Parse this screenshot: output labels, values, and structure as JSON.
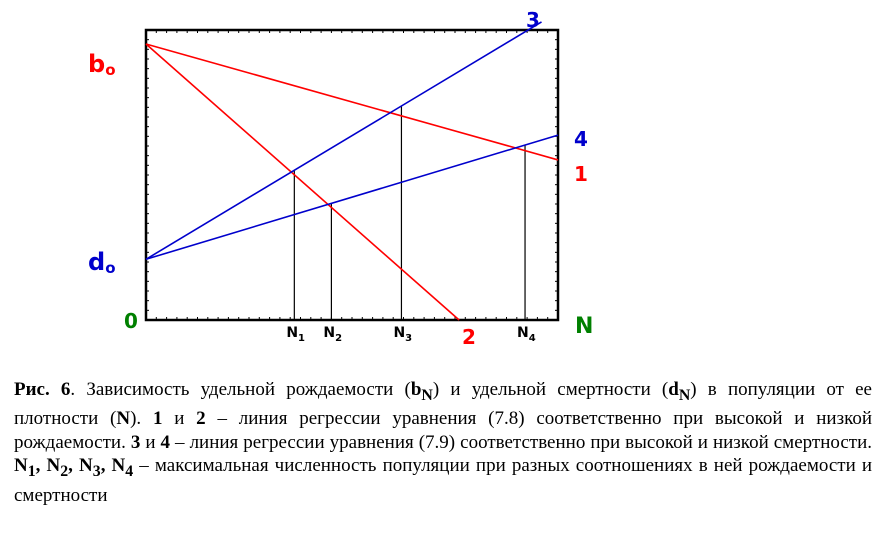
{
  "chart_data": {
    "type": "line",
    "axis_labels": {
      "origin": "0",
      "x": "N",
      "y_top": "b",
      "y_top_sub": "o",
      "y_bottom": "d",
      "y_bottom_sub": "o"
    },
    "ticks": [
      {
        "main": "N",
        "sub": "1",
        "x": 1.8
      },
      {
        "main": "N",
        "sub": "2",
        "x": 2.25
      },
      {
        "main": "N",
        "sub": "3",
        "x": 3.1
      },
      {
        "main": "N",
        "sub": "4",
        "x": 4.6
      }
    ],
    "b0": 1.0,
    "d0": 0.22,
    "series": [
      {
        "name": "1",
        "color": "#ff0000",
        "points": [
          [
            0,
            1.0
          ],
          [
            5.0,
            0.58
          ]
        ]
      },
      {
        "name": "2",
        "color": "#ff0000",
        "points": [
          [
            0,
            1.0
          ],
          [
            3.8,
            0.0
          ]
        ]
      },
      {
        "name": "3",
        "color": "#0000cc",
        "points": [
          [
            0,
            0.22
          ],
          [
            4.8,
            1.08
          ]
        ]
      },
      {
        "name": "4",
        "color": "#0000cc",
        "points": [
          [
            0,
            0.22
          ],
          [
            5.0,
            0.67
          ]
        ]
      }
    ],
    "xlim": [
      0,
      5.0
    ],
    "ylim": [
      0,
      1.08
    ],
    "colors": {
      "red": "#ff0000",
      "blue": "#0000cc",
      "green": "#008000",
      "axis": "#000000"
    }
  },
  "caption": {
    "fig_label": "Рис. 6",
    "s1": ". Зависимость удельной рождаемости (",
    "b": "b",
    "b_sub": "N",
    "s2": ") и удельной смертности (",
    "d": "d",
    "d_sub": "N",
    "s3": ") в популяции от ее плотности (",
    "n": "N",
    "s4": "). ",
    "one": "1",
    "s5": " и ",
    "two": "2",
    "s6": " – линия регрессии уравнения (7.8) соответственно при высокой и низкой рождаемости. ",
    "three": "3",
    "s7": " и ",
    "four": "4",
    "s8": " – линия регрессии уравнения (7.9) соответственно при высокой и низкой смертности. ",
    "n1": "N",
    "n1_sub": "1",
    "c1": ", ",
    "n2": "N",
    "n2_sub": "2",
    "c2": ", ",
    "n3": "N",
    "n3_sub": "3",
    "c3": ", ",
    "n4": "N",
    "n4_sub": "4",
    "s9": " – максимальная численность популяции при разных соотношениях в ней рождаемости и смертности"
  }
}
